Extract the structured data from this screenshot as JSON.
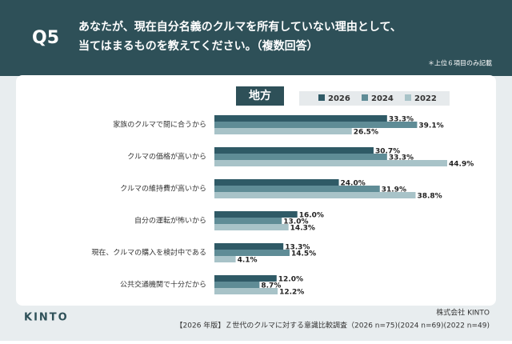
{
  "header": {
    "number": "Q5",
    "question": [
      "あなたが、現在自分名義のクルマを所有していない理由として、",
      "当てはまるものを教えてください。（複数回答）"
    ],
    "note": "＊上位６項目のみ記載"
  },
  "chart_data": {
    "type": "bar",
    "orientation": "horizontal",
    "title": "地方",
    "categories": [
      "家族のクルマで間に合うから",
      "クルマの価格が高いから",
      "クルマの維持費が高いから",
      "自分の運転が怖いから",
      "現在、クルマの購入を検討中である",
      "公共交通機関で十分だから"
    ],
    "series": [
      {
        "name": "2026",
        "color": "#2f5a66",
        "values": [
          33.3,
          30.7,
          24.0,
          16.0,
          13.3,
          12.0
        ],
        "value_labels": [
          "33.3%",
          "30.7%",
          "24.0%",
          "16.0%",
          "13.3%",
          "12.0%"
        ]
      },
      {
        "name": "2024",
        "color": "#5f8c96",
        "values": [
          39.1,
          33.3,
          31.9,
          13.0,
          14.5,
          8.7
        ],
        "value_labels": [
          "39.1%",
          "33.3%",
          "31.9%",
          "13.0%",
          "14.5%",
          "8.7%"
        ]
      },
      {
        "name": "2022",
        "color": "#a8c3c8",
        "values": [
          26.5,
          44.9,
          38.8,
          14.3,
          4.1,
          12.2
        ],
        "value_labels": [
          "26.5%",
          "44.9%",
          "38.8%",
          "14.3%",
          "4.1%",
          "12.2%"
        ]
      }
    ]
  },
  "footer": {
    "logo": "KINTO",
    "company": "株式会社 KINTO",
    "source": "【2026 年版】Ｚ世代のクルマに対する意識比較調査（2026 n=75)(2024 n=69)(2022 n=49)"
  }
}
